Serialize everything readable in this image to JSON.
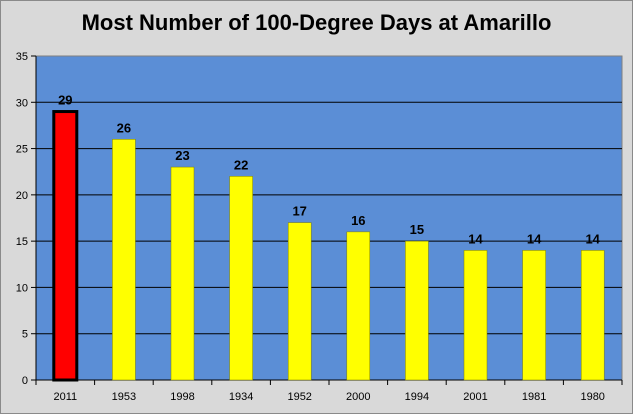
{
  "chart_data": {
    "type": "bar",
    "title": "Most Number of 100-Degree Days at Amarillo",
    "xlabel": "",
    "ylabel": "",
    "categories": [
      "2011",
      "1953",
      "1998",
      "1934",
      "1952",
      "2000",
      "1994",
      "2001",
      "1981",
      "1980"
    ],
    "values": [
      29,
      26,
      23,
      22,
      17,
      16,
      15,
      14,
      14,
      14
    ],
    "ylim": [
      0,
      35
    ],
    "yticks": [
      0,
      5,
      10,
      15,
      20,
      25,
      30,
      35
    ],
    "grid": true,
    "legend": "none",
    "highlight_index": 0,
    "colors": {
      "plot_background": "#5b8ed6",
      "frame_background": "#d9d9d9",
      "bar": "#ffff00",
      "highlight_bar": "#ff0000",
      "highlight_outline": "#000000",
      "gridline": "#000000"
    }
  }
}
